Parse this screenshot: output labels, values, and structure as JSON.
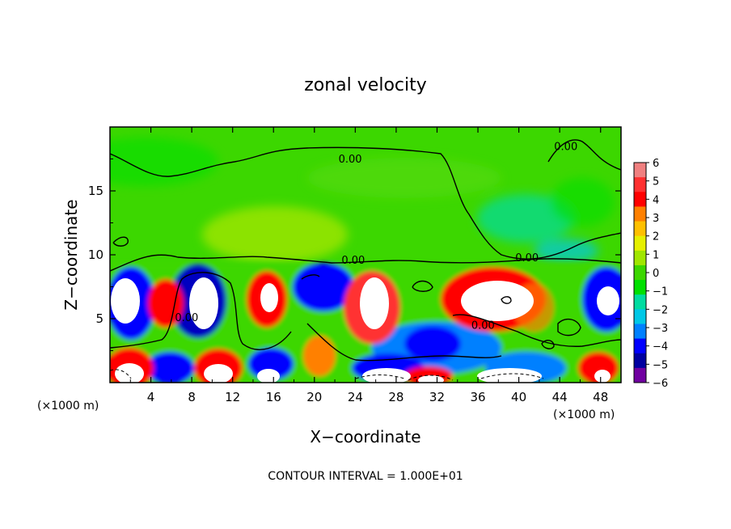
{
  "chart_data": {
    "type": "heatmap",
    "title": "zonal velocity",
    "xlabel": "X−coordinate",
    "ylabel": "Z−coordinate",
    "x_unit_left": "(×1000 m)",
    "x_unit_right": "(×1000 m)",
    "footer": "CONTOUR INTERVAL = 1.000E+01",
    "xlim": [
      0,
      50
    ],
    "ylim": [
      0,
      20
    ],
    "x_ticks": [
      4,
      8,
      12,
      16,
      20,
      24,
      28,
      32,
      36,
      40,
      44,
      48
    ],
    "y_ticks": [
      5,
      10,
      15
    ],
    "x_tick_labels": [
      "4",
      "8",
      "12",
      "16",
      "20",
      "24",
      "28",
      "32",
      "36",
      "40",
      "44",
      "48"
    ],
    "y_tick_labels": [
      "5",
      "10",
      "15"
    ],
    "colorbar": {
      "range": [
        -6,
        6
      ],
      "labels": [
        "6",
        "5",
        "4",
        "3",
        "2",
        "1",
        "0",
        "−1",
        "−2",
        "−3",
        "−4",
        "−5",
        "−6"
      ],
      "colors": [
        "#f08080",
        "#ff3030",
        "#ff0000",
        "#ff8000",
        "#ffc000",
        "#e6f000",
        "#a0e600",
        "#3cd700",
        "#00e000",
        "#00dca0",
        "#00c8e6",
        "#0080ff",
        "#0000ff",
        "#0000a0",
        "#7000a0"
      ]
    },
    "contour_labels": [
      {
        "text": "0.00",
        "x": 23.5,
        "y": 17.2
      },
      {
        "text": "0.00",
        "x": 44.6,
        "y": 18.2
      },
      {
        "text": "0.00",
        "x": 23.8,
        "y": 9.3
      },
      {
        "text": "0.00",
        "x": 40.8,
        "y": 9.5
      },
      {
        "text": "0.00",
        "x": 7.5,
        "y": 4.8
      },
      {
        "text": "0.00",
        "x": 36.5,
        "y": 4.2
      }
    ]
  }
}
